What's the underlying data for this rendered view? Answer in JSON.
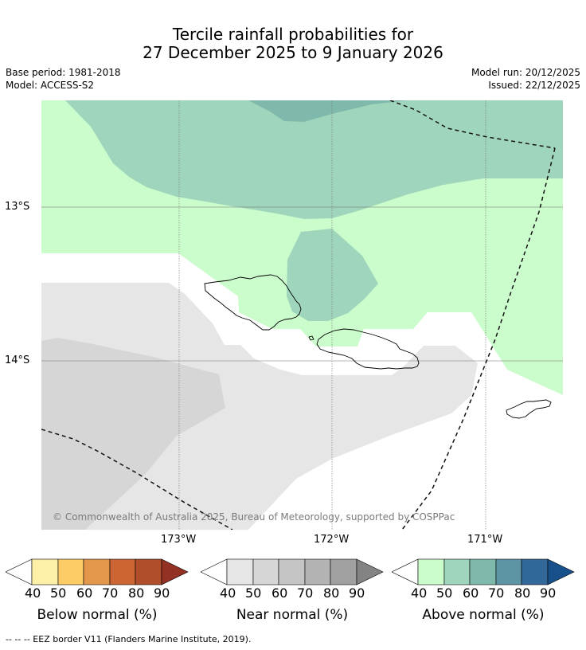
{
  "title": {
    "line1": "Tercile rainfall probabilities for",
    "line2": "27 December 2025 to 9 January 2026"
  },
  "meta": {
    "base_period": "Base period: 1981-2018",
    "model": "Model: ACCESS-S2",
    "model_run": "Model run: 20/12/2025",
    "issued": "Issued: 22/12/2025"
  },
  "map": {
    "lat_labels": [
      "13°S",
      "14°S"
    ],
    "lon_labels": [
      "173°W",
      "172°W",
      "171°W"
    ],
    "copyright": "© Commonwealth of Australia 2025, Bureau of Meteorology, supported by COSPPac"
  },
  "colorbars": [
    {
      "title": "Below normal (%)",
      "ticks": [
        "40",
        "50",
        "60",
        "70",
        "80",
        "90"
      ],
      "colors": [
        "#fff0a8",
        "#fdcc66",
        "#e3974a",
        "#cc6433",
        "#b04e2c",
        "#923124"
      ]
    },
    {
      "title": "Near normal (%)",
      "ticks": [
        "40",
        "50",
        "60",
        "70",
        "80",
        "90"
      ],
      "colors": [
        "#e6e6e6",
        "#d6d6d6",
        "#c5c5c5",
        "#b3b3b3",
        "#a0a0a0",
        "#838383"
      ]
    },
    {
      "title": "Above normal (%)",
      "ticks": [
        "40",
        "50",
        "60",
        "70",
        "80",
        "90"
      ],
      "colors": [
        "#cbfccb",
        "#9fd5bc",
        "#7fb9ac",
        "#5d95a5",
        "#326799",
        "#17508a"
      ]
    }
  ],
  "legend": {
    "eez": "--  --  -- EEZ border V11 (Flanders Marine Institute, 2019)."
  }
}
